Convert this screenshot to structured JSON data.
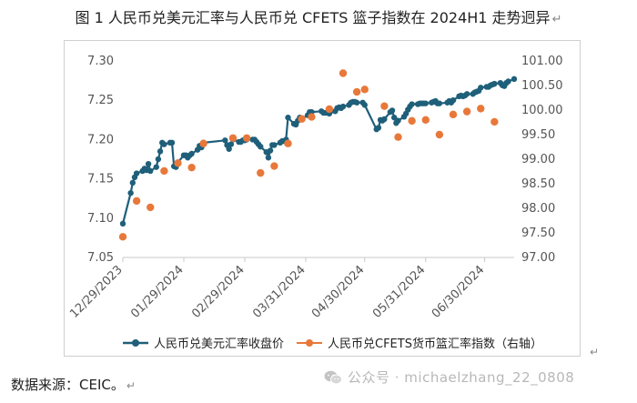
{
  "figure": {
    "title": "图 1   人民币兑美元汇率与人民币兑 CFETS 篮子指数在 2024H1 走势迥异",
    "return_mark": "↵",
    "source": "数据来源：CEIC。",
    "watermark": "公众号 · michaelzhang_22_0808"
  },
  "chart_data": {
    "type": "line",
    "title": "",
    "xlabel": "",
    "ylabel": "",
    "y2label": "",
    "x_ticks": [
      "12/29/2023",
      "01/29/2024",
      "02/29/2024",
      "03/31/2024",
      "04/30/2024",
      "05/31/2024",
      "06/30/2024"
    ],
    "ylim": [
      7.05,
      7.3
    ],
    "y_ticks": [
      "7.05",
      "7.10",
      "7.15",
      "7.20",
      "7.25",
      "7.30"
    ],
    "y2lim": [
      97.0,
      101.0
    ],
    "y2_ticks": [
      "97.00",
      "97.50",
      "98.00",
      "98.50",
      "99.00",
      "99.50",
      "100.00",
      "100.50",
      "101.00"
    ],
    "grid": false,
    "legend_position": "bottom",
    "series": [
      {
        "name": "人民币兑美元汇率收盘价",
        "axis": "left",
        "color": "#1f5f7a",
        "style": "line-markers",
        "points": [
          [
            "2023-12-29",
            7.093
          ],
          [
            "2024-01-02",
            7.132
          ],
          [
            "2024-01-03",
            7.145
          ],
          [
            "2024-01-04",
            7.152
          ],
          [
            "2024-01-05",
            7.157
          ],
          [
            "2024-01-08",
            7.16
          ],
          [
            "2024-01-09",
            7.163
          ],
          [
            "2024-01-10",
            7.161
          ],
          [
            "2024-01-11",
            7.169
          ],
          [
            "2024-01-12",
            7.16
          ],
          [
            "2024-01-15",
            7.165
          ],
          [
            "2024-01-16",
            7.175
          ],
          [
            "2024-01-17",
            7.185
          ],
          [
            "2024-01-18",
            7.196
          ],
          [
            "2024-01-19",
            7.194
          ],
          [
            "2024-01-22",
            7.196
          ],
          [
            "2024-01-23",
            7.196
          ],
          [
            "2024-01-24",
            7.166
          ],
          [
            "2024-01-25",
            7.165
          ],
          [
            "2024-01-26",
            7.171
          ],
          [
            "2024-01-29",
            7.18
          ],
          [
            "2024-01-30",
            7.18
          ],
          [
            "2024-01-31",
            7.177
          ],
          [
            "2024-02-01",
            7.18
          ],
          [
            "2024-02-02",
            7.182
          ],
          [
            "2024-02-05",
            7.187
          ],
          [
            "2024-02-06",
            7.192
          ],
          [
            "2024-02-07",
            7.19
          ],
          [
            "2024-02-08",
            7.196
          ],
          [
            "2024-02-19",
            7.199
          ],
          [
            "2024-02-20",
            7.193
          ],
          [
            "2024-02-21",
            7.188
          ],
          [
            "2024-02-22",
            7.194
          ],
          [
            "2024-02-23",
            7.2
          ],
          [
            "2024-02-26",
            7.197
          ],
          [
            "2024-02-27",
            7.197
          ],
          [
            "2024-02-28",
            7.199
          ],
          [
            "2024-02-29",
            7.199
          ],
          [
            "2024-03-01",
            7.2
          ],
          [
            "2024-03-04",
            7.2
          ],
          [
            "2024-03-05",
            7.2
          ],
          [
            "2024-03-06",
            7.197
          ],
          [
            "2024-03-07",
            7.194
          ],
          [
            "2024-03-08",
            7.191
          ],
          [
            "2024-03-11",
            7.184
          ],
          [
            "2024-03-12",
            7.177
          ],
          [
            "2024-03-13",
            7.186
          ],
          [
            "2024-03-14",
            7.193
          ],
          [
            "2024-03-15",
            7.193
          ],
          [
            "2024-03-18",
            7.196
          ],
          [
            "2024-03-19",
            7.198
          ],
          [
            "2024-03-20",
            7.198
          ],
          [
            "2024-03-21",
            7.2
          ],
          [
            "2024-03-22",
            7.228
          ],
          [
            "2024-03-25",
            7.22
          ],
          [
            "2024-03-26",
            7.219
          ],
          [
            "2024-03-27",
            7.224
          ],
          [
            "2024-03-28",
            7.228
          ],
          [
            "2024-03-29",
            7.226
          ],
          [
            "2024-04-01",
            7.231
          ],
          [
            "2024-04-02",
            7.235
          ],
          [
            "2024-04-03",
            7.235
          ],
          [
            "2024-04-08",
            7.236
          ],
          [
            "2024-04-09",
            7.234
          ],
          [
            "2024-04-10",
            7.234
          ],
          [
            "2024-04-11",
            7.234
          ],
          [
            "2024-04-12",
            7.233
          ],
          [
            "2024-04-15",
            7.236
          ],
          [
            "2024-04-16",
            7.24
          ],
          [
            "2024-04-17",
            7.241
          ],
          [
            "2024-04-18",
            7.24
          ],
          [
            "2024-04-19",
            7.242
          ],
          [
            "2024-04-22",
            7.244
          ],
          [
            "2024-04-23",
            7.247
          ],
          [
            "2024-04-24",
            7.248
          ],
          [
            "2024-04-25",
            7.248
          ],
          [
            "2024-04-26",
            7.247
          ],
          [
            "2024-04-29",
            7.247
          ],
          [
            "2024-04-30",
            7.244
          ],
          [
            "2024-05-06",
            7.213
          ],
          [
            "2024-05-07",
            7.215
          ],
          [
            "2024-05-08",
            7.225
          ],
          [
            "2024-05-09",
            7.224
          ],
          [
            "2024-05-10",
            7.226
          ],
          [
            "2024-05-13",
            7.235
          ],
          [
            "2024-05-14",
            7.237
          ],
          [
            "2024-05-15",
            7.228
          ],
          [
            "2024-05-16",
            7.221
          ],
          [
            "2024-05-17",
            7.224
          ],
          [
            "2024-05-20",
            7.229
          ],
          [
            "2024-05-21",
            7.233
          ],
          [
            "2024-05-22",
            7.238
          ],
          [
            "2024-05-23",
            7.242
          ],
          [
            "2024-05-24",
            7.245
          ],
          [
            "2024-05-27",
            7.245
          ],
          [
            "2024-05-28",
            7.246
          ],
          [
            "2024-05-29",
            7.246
          ],
          [
            "2024-05-30",
            7.246
          ],
          [
            "2024-05-31",
            7.246
          ],
          [
            "2024-06-03",
            7.247
          ],
          [
            "2024-06-04",
            7.248
          ],
          [
            "2024-06-05",
            7.249
          ],
          [
            "2024-06-06",
            7.246
          ],
          [
            "2024-06-07",
            7.246
          ],
          [
            "2024-06-11",
            7.247
          ],
          [
            "2024-06-12",
            7.249
          ],
          [
            "2024-06-13",
            7.247
          ],
          [
            "2024-06-14",
            7.25
          ],
          [
            "2024-06-17",
            7.255
          ],
          [
            "2024-06-18",
            7.256
          ],
          [
            "2024-06-19",
            7.255
          ],
          [
            "2024-06-20",
            7.256
          ],
          [
            "2024-06-21",
            7.258
          ],
          [
            "2024-06-24",
            7.258
          ],
          [
            "2024-06-25",
            7.26
          ],
          [
            "2024-06-26",
            7.261
          ],
          [
            "2024-06-27",
            7.262
          ],
          [
            "2024-06-28",
            7.266
          ],
          [
            "2024-07-01",
            7.267
          ],
          [
            "2024-07-02",
            7.267
          ],
          [
            "2024-07-03",
            7.269
          ],
          [
            "2024-07-04",
            7.27
          ],
          [
            "2024-07-05",
            7.271
          ],
          [
            "2024-07-08",
            7.272
          ],
          [
            "2024-07-09",
            7.269
          ],
          [
            "2024-07-10",
            7.268
          ],
          [
            "2024-07-11",
            7.272
          ],
          [
            "2024-07-12",
            7.274
          ],
          [
            "2024-07-15",
            7.277
          ]
        ]
      },
      {
        "name": "人民币兑CFETS货币篮汇率指数（右轴）",
        "axis": "right",
        "color": "#e8783a",
        "style": "markers",
        "points": [
          [
            "2023-12-29",
            97.42
          ],
          [
            "2024-01-05",
            98.15
          ],
          [
            "2024-01-12",
            98.02
          ],
          [
            "2024-01-19",
            98.76
          ],
          [
            "2024-01-26",
            98.92
          ],
          [
            "2024-02-02",
            98.83
          ],
          [
            "2024-02-08",
            99.32
          ],
          [
            "2024-02-23",
            99.43
          ],
          [
            "2024-03-01",
            99.43
          ],
          [
            "2024-03-08",
            98.72
          ],
          [
            "2024-03-15",
            98.86
          ],
          [
            "2024-03-22",
            99.32
          ],
          [
            "2024-03-29",
            99.82
          ],
          [
            "2024-04-03",
            99.86
          ],
          [
            "2024-04-12",
            100.02
          ],
          [
            "2024-04-19",
            100.75
          ],
          [
            "2024-04-26",
            100.37
          ],
          [
            "2024-04-30",
            100.42
          ],
          [
            "2024-05-10",
            100.08
          ],
          [
            "2024-05-17",
            99.45
          ],
          [
            "2024-05-24",
            99.78
          ],
          [
            "2024-05-31",
            99.8
          ],
          [
            "2024-06-07",
            99.5
          ],
          [
            "2024-06-14",
            99.91
          ],
          [
            "2024-06-21",
            99.97
          ],
          [
            "2024-06-28",
            100.03
          ],
          [
            "2024-07-05",
            99.76
          ]
        ]
      }
    ]
  }
}
